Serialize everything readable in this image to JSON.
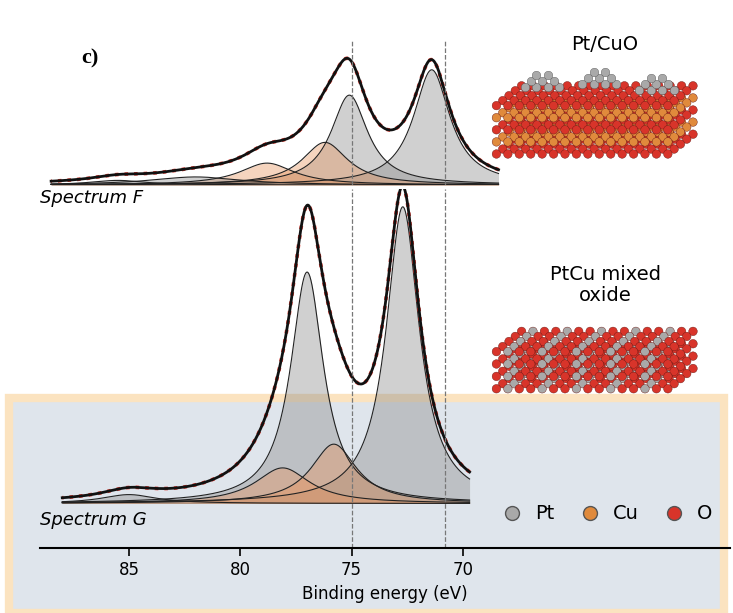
{
  "chart_data": [
    {
      "type": "line",
      "annotations": [
        "c)",
        "Spectrum F"
      ],
      "xlim": [
        89,
        58
      ],
      "ylim": [
        0,
        1.25
      ],
      "tick_labels": false,
      "reference_lines": [
        75.0,
        70.8
      ],
      "components": [
        {
          "center": 71.4,
          "height": 1.0,
          "fwhm": 2.0,
          "color": "#8a8a8a"
        },
        {
          "center": 75.1,
          "height": 0.78,
          "fwhm": 2.0,
          "color": "#8a8a8a"
        },
        {
          "center": 76.2,
          "height": 0.37,
          "fwhm": 2.5,
          "color": "#e8945e"
        },
        {
          "center": 78.8,
          "height": 0.19,
          "fwhm": 3.0,
          "color": "#e8945e"
        },
        {
          "center": 82.0,
          "height": 0.07,
          "fwhm": 5.0,
          "color": "#8a8a8a"
        },
        {
          "center": 85.5,
          "height": 0.04,
          "fwhm": 3.0,
          "color": "#8a8a8a"
        }
      ]
    },
    {
      "type": "line",
      "annotations": [
        "Spectrum G"
      ],
      "xlabel": "Binding energy (eV)",
      "xlim": [
        89,
        58
      ],
      "xticks": [
        85,
        80,
        75,
        70
      ],
      "ylim": [
        -0.15,
        1.06
      ],
      "tick_labels": "x",
      "reference_lines": [
        75.0,
        70.8
      ],
      "legend": "lower right",
      "components": [
        {
          "center": 72.7,
          "height": 1.0,
          "fwhm": 1.8,
          "color": "#8a8a8a"
        },
        {
          "center": 77.0,
          "height": 0.78,
          "fwhm": 1.8,
          "color": "#8a8a8a"
        },
        {
          "center": 75.8,
          "height": 0.2,
          "fwhm": 2.5,
          "color": "#e8945e"
        },
        {
          "center": 78.1,
          "height": 0.12,
          "fwhm": 3.0,
          "color": "#e8945e"
        },
        {
          "center": 85.0,
          "height": 0.03,
          "fwhm": 3.0,
          "color": "#8a8a8a"
        }
      ]
    }
  ],
  "schematics": [
    "Pt/CuO",
    "PtCu mixed\noxide"
  ],
  "atoms": [
    {
      "name": "Pt",
      "color": "#a9a9a9"
    },
    {
      "name": "Cu",
      "color": "#e08a3c"
    },
    {
      "name": "O",
      "color": "#d8342a"
    }
  ]
}
